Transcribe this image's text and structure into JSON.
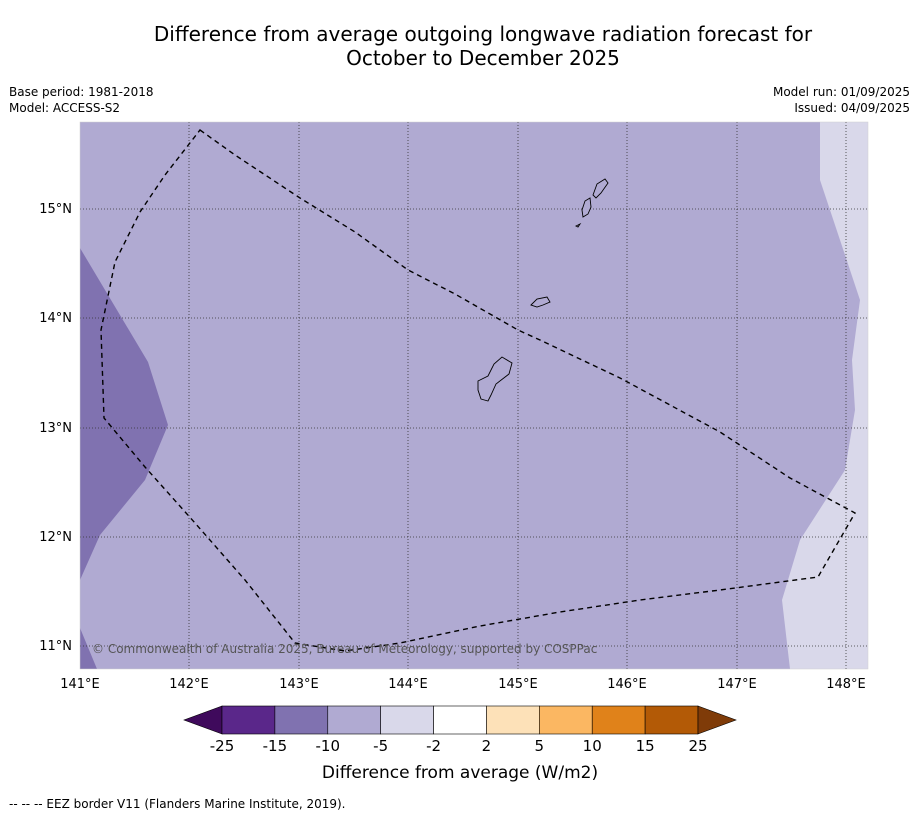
{
  "title_line1": "Difference from average outgoing longwave radiation forecast for",
  "title_line2": "October to December 2025",
  "meta_left": {
    "base_period": "Base period: 1981-2018",
    "model": "Model: ACCESS-S2"
  },
  "meta_right": {
    "model_run": "Model run: 01/09/2025",
    "issued": "Issued: 04/09/2025"
  },
  "lat_labels": [
    "15°N",
    "14°N",
    "13°N",
    "12°N",
    "11°N"
  ],
  "lon_labels": [
    "141°E",
    "142°E",
    "143°E",
    "144°E",
    "145°E",
    "146°E",
    "147°E",
    "148°E"
  ],
  "copyright": "© Commonwealth of Australia 2025, Bureau of Meteorology, supported by COSPPac",
  "colorbar": {
    "ticks": [
      "-25",
      "-15",
      "-10",
      "-5",
      "-2",
      "2",
      "5",
      "10",
      "15",
      "25"
    ],
    "colors": [
      "#3f0a5c",
      "#5a278a",
      "#8072b0",
      "#b0aad2",
      "#d9d8ea",
      "#ffffff",
      "#fde1b8",
      "#fbb762",
      "#e0821a",
      "#b35a06",
      "#7f3b08"
    ],
    "title": "Difference from average (W/m2)"
  },
  "footer": "--  --  -- EEZ border V11 (Flanders Marine Institute, 2019)."
}
